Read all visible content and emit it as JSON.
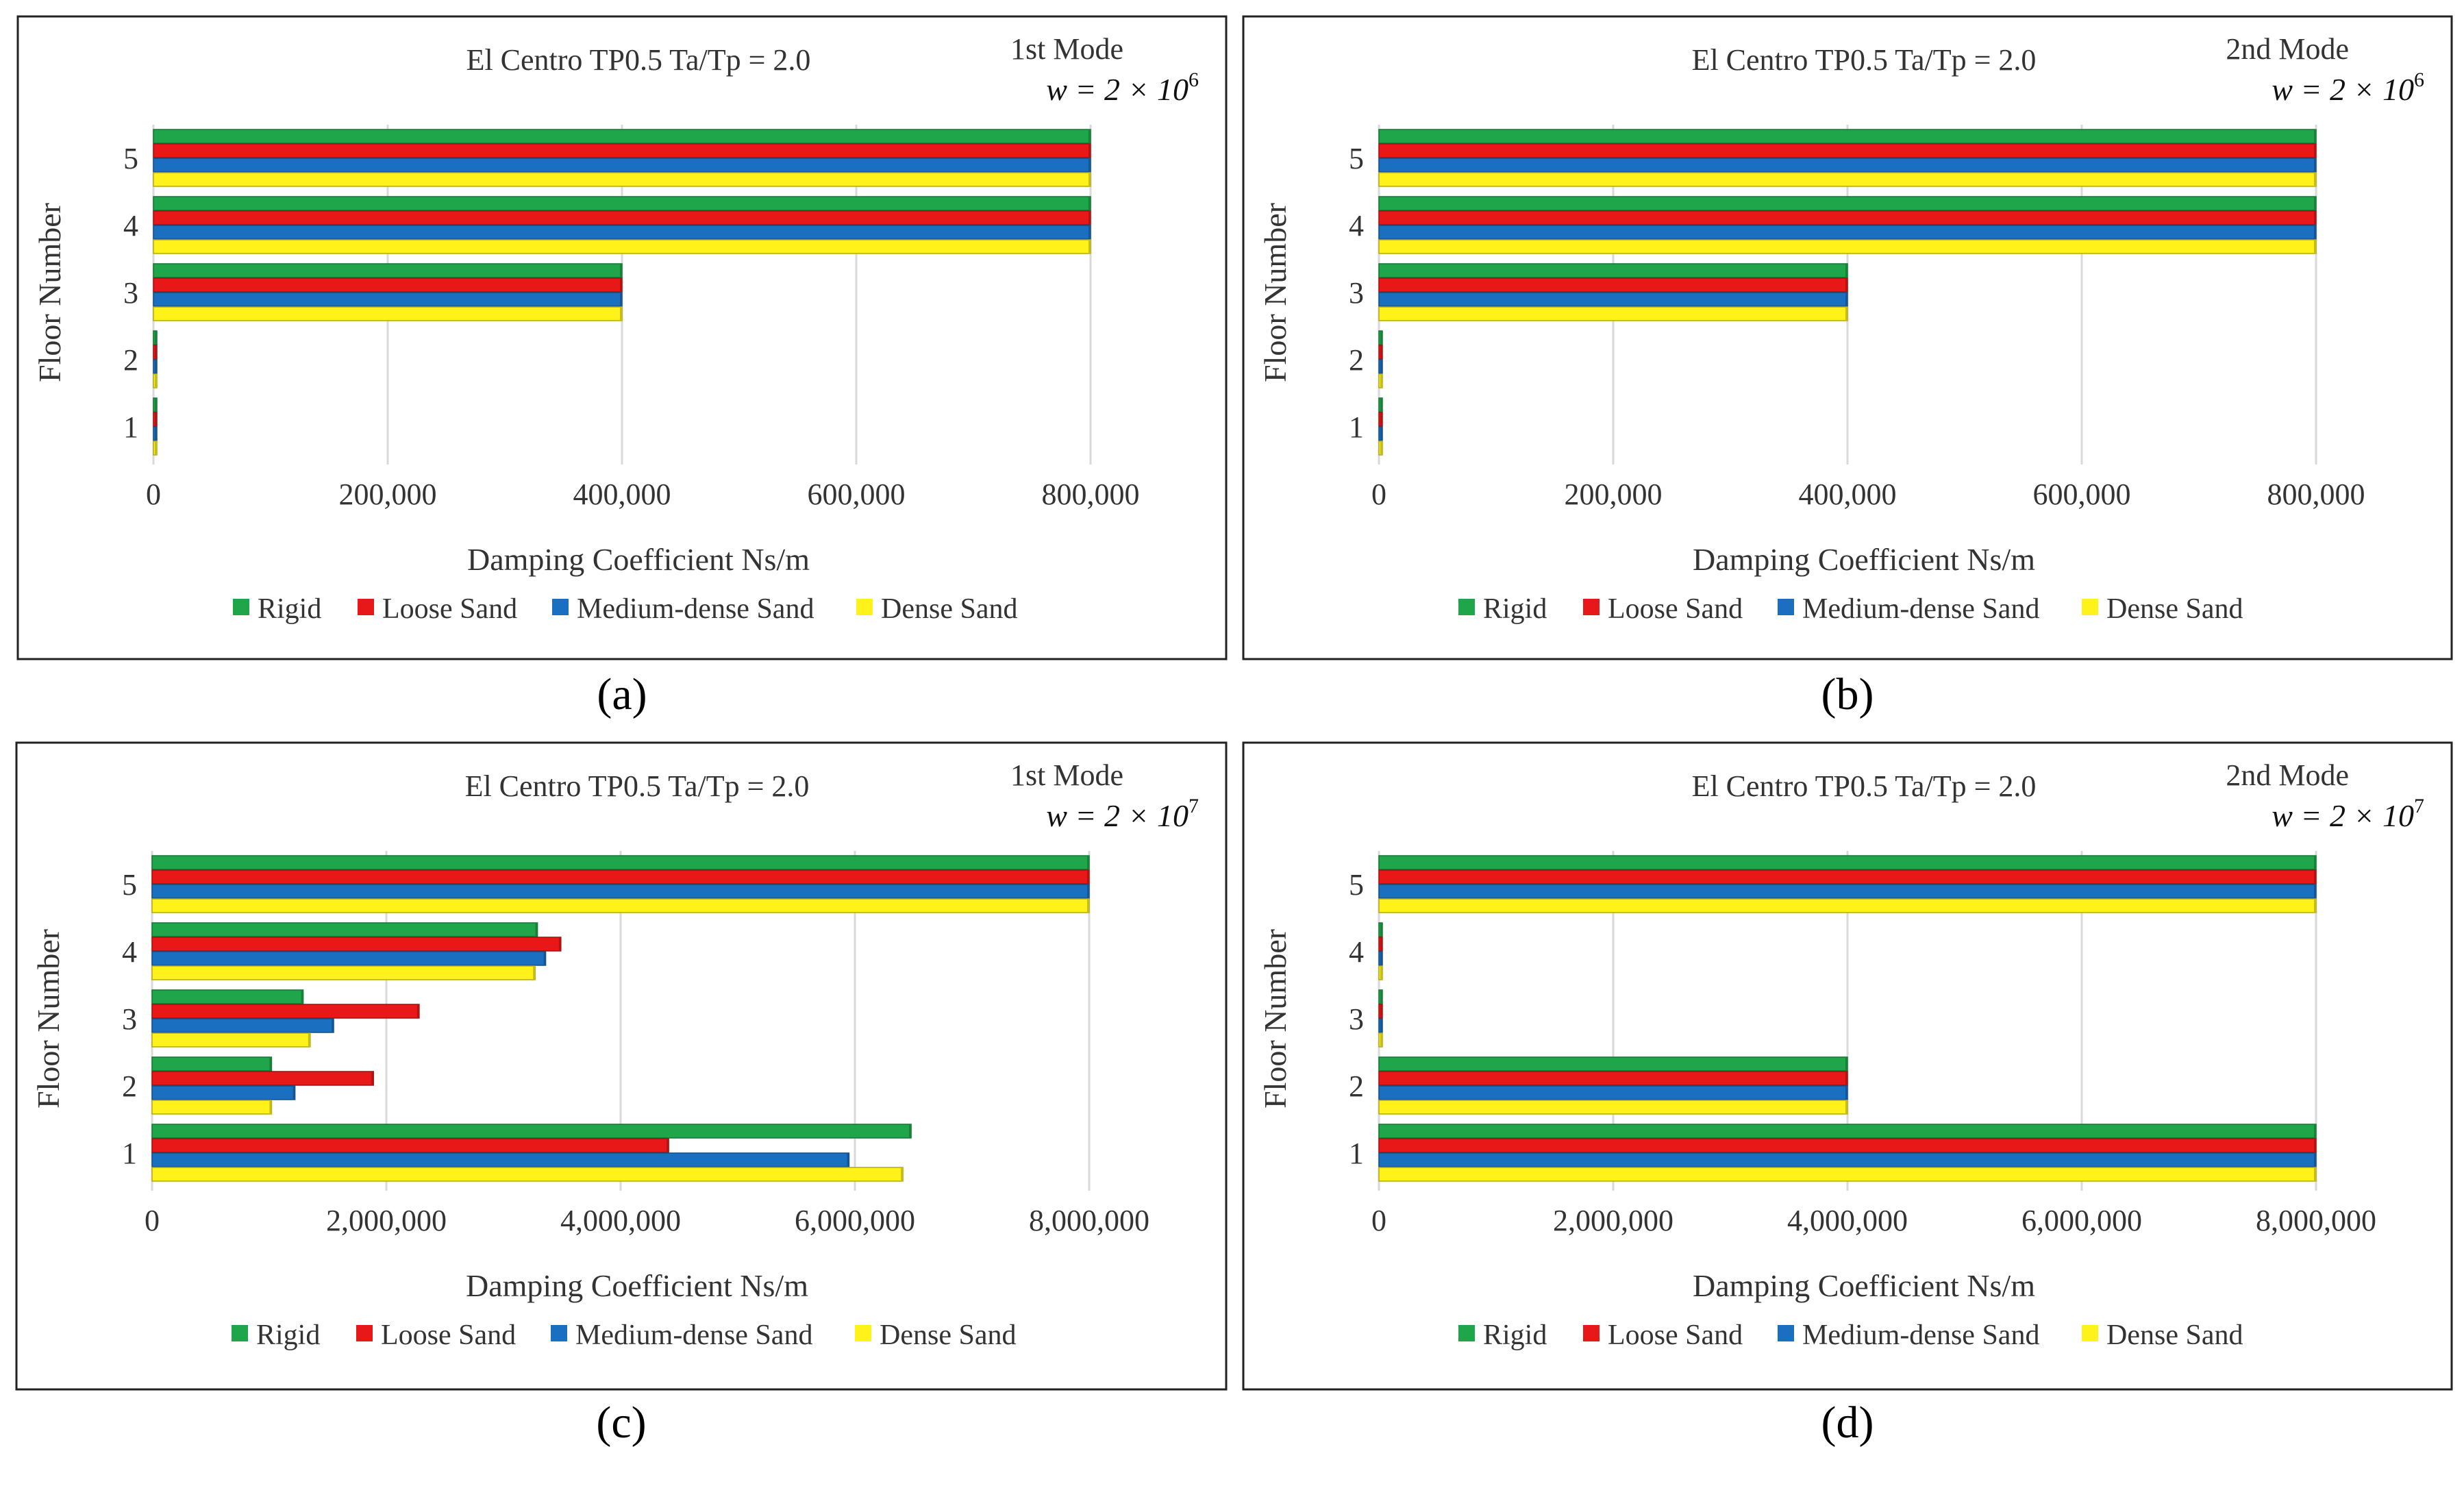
{
  "colors": {
    "Rigid": "#1FA64A",
    "Loose Sand": "#E81818",
    "Medium-dense Sand": "#1B6FC0",
    "Dense Sand": "#FFF21A",
    "grid": "#d9d9d9",
    "frame": "#222222",
    "text": "#333333"
  },
  "chart_data": [
    {
      "panel_label": "(a)",
      "type": "bar",
      "orientation": "horizontal",
      "title": "El Centro TP0.5  Ta/Tp = 2.0",
      "mode_label": "1st Mode",
      "w_base": "w = 2 × 10",
      "w_exp": "6",
      "xlabel": "Damping Coefficient Ns/m",
      "ylabel": "Floor Number",
      "xlim": [
        0,
        800000
      ],
      "xticks": [
        0,
        200000,
        400000,
        600000,
        800000
      ],
      "xtick_labels": [
        "0",
        "200,000",
        "400,000",
        "600,000",
        "800,000"
      ],
      "categories": [
        "1",
        "2",
        "3",
        "4",
        "5"
      ],
      "series": [
        {
          "name": "Rigid",
          "values": [
            0,
            0,
            400000,
            800000,
            800000
          ]
        },
        {
          "name": "Loose Sand",
          "values": [
            0,
            0,
            400000,
            800000,
            800000
          ]
        },
        {
          "name": "Medium-dense Sand",
          "values": [
            0,
            0,
            400000,
            800000,
            800000
          ]
        },
        {
          "name": "Dense Sand",
          "values": [
            0,
            0,
            400000,
            800000,
            800000
          ]
        }
      ]
    },
    {
      "panel_label": "(b)",
      "type": "bar",
      "orientation": "horizontal",
      "title": "El Centro TP0.5  Ta/Tp = 2.0",
      "mode_label": "2nd Mode",
      "w_base": "w = 2 × 10",
      "w_exp": "6",
      "xlabel": "Damping Coefficient Ns/m",
      "ylabel": "Floor Number",
      "xlim": [
        0,
        800000
      ],
      "xticks": [
        0,
        200000,
        400000,
        600000,
        800000
      ],
      "xtick_labels": [
        "0",
        "200,000",
        "400,000",
        "600,000",
        "800,000"
      ],
      "categories": [
        "1",
        "2",
        "3",
        "4",
        "5"
      ],
      "series": [
        {
          "name": "Rigid",
          "values": [
            0,
            0,
            400000,
            800000,
            800000
          ]
        },
        {
          "name": "Loose Sand",
          "values": [
            0,
            0,
            400000,
            800000,
            800000
          ]
        },
        {
          "name": "Medium-dense Sand",
          "values": [
            0,
            0,
            400000,
            800000,
            800000
          ]
        },
        {
          "name": "Dense Sand",
          "values": [
            0,
            0,
            400000,
            800000,
            800000
          ]
        }
      ]
    },
    {
      "panel_label": "(c)",
      "type": "bar",
      "orientation": "horizontal",
      "title": "El Centro TP0.5  Ta/Tp = 2.0",
      "mode_label": "1st Mode",
      "w_base": "w = 2 × 10",
      "w_exp": "7",
      "xlabel": "Damping Coefficient Ns/m",
      "ylabel": "Floor Number",
      "xlim": [
        0,
        8000000
      ],
      "xticks": [
        0,
        2000000,
        4000000,
        6000000,
        8000000
      ],
      "xtick_labels": [
        "0",
        "2,000,000",
        "4,000,000",
        "6,000,000",
        "8,000,000"
      ],
      "categories": [
        "1",
        "2",
        "3",
        "4",
        "5"
      ],
      "series": [
        {
          "name": "Rigid",
          "values": [
            6480000,
            1020000,
            1290000,
            3290000,
            8000000
          ]
        },
        {
          "name": "Loose Sand",
          "values": [
            4410000,
            1890000,
            2280000,
            3490000,
            8000000
          ]
        },
        {
          "name": "Medium-dense Sand",
          "values": [
            5950000,
            1220000,
            1550000,
            3360000,
            8000000
          ]
        },
        {
          "name": "Dense Sand",
          "values": [
            6410000,
            1020000,
            1350000,
            3270000,
            8000000
          ]
        }
      ]
    },
    {
      "panel_label": "(d)",
      "type": "bar",
      "orientation": "horizontal",
      "title": "El Centro TP0.5  Ta/Tp = 2.0",
      "mode_label": "2nd Mode",
      "w_base": "w = 2 × 10",
      "w_exp": "7",
      "xlabel": "Damping Coefficient Ns/m",
      "ylabel": "Floor Number",
      "xlim": [
        0,
        8000000
      ],
      "xticks": [
        0,
        2000000,
        4000000,
        6000000,
        8000000
      ],
      "xtick_labels": [
        "0",
        "2,000,000",
        "4,000,000",
        "6,000,000",
        "8,000,000"
      ],
      "categories": [
        "1",
        "2",
        "3",
        "4",
        "5"
      ],
      "series": [
        {
          "name": "Rigid",
          "values": [
            8000000,
            4000000,
            0,
            0,
            8000000
          ]
        },
        {
          "name": "Loose Sand",
          "values": [
            8000000,
            4000000,
            0,
            0,
            8000000
          ]
        },
        {
          "name": "Medium-dense Sand",
          "values": [
            8000000,
            4000000,
            0,
            0,
            8000000
          ]
        },
        {
          "name": "Dense Sand",
          "values": [
            8000000,
            4000000,
            0,
            0,
            8000000
          ]
        }
      ]
    }
  ]
}
